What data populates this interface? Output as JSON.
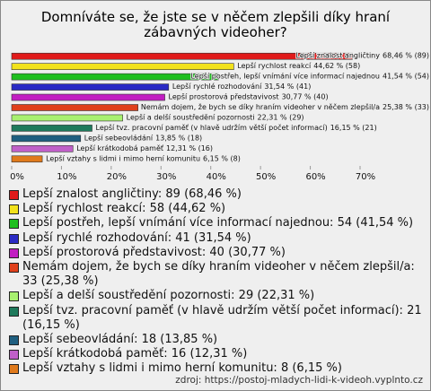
{
  "chart_data": {
    "type": "bar",
    "orientation": "horizontal",
    "title": "Domníváte se, že jste se v něčem zlepšili díky hraní zábavných videoher?",
    "categories": [
      "Lepší znalost angličtiny",
      "Lepší rychlost reakcí",
      "Lepší postřeh, lepší vnímání více informací najednou",
      "Lepší rychlé rozhodování",
      "Lepší prostorová představivost",
      "Nemám dojem, že bych se díky hraním videoher v něčem zlepšil/a",
      "Lepší a delší soustředění pozornosti",
      "Lepší tvz. pracovní paměť (v hlavě udržím větší počet informací)",
      "Lepší sebeovládání",
      "Lepší krátkodobá paměť",
      "Lepší vztahy s lidmi i mimo herní komunitu"
    ],
    "values": [
      68.46,
      44.62,
      41.54,
      31.54,
      30.77,
      25.38,
      22.31,
      16.15,
      13.85,
      12.31,
      6.15
    ],
    "value_labels": [
      "68,46 % (89)",
      "44,62 % (58)",
      "41,54 % (54)",
      "31,54 % (41)",
      "30,77 % (40)",
      "25,38 % (33)",
      "22,31 % (29)",
      "16,15 % (21)",
      "13,85 % (18)",
      "12,31 % (16)",
      "6,15 % (8)"
    ],
    "colors": [
      "#e01a1a",
      "#f2e21c",
      "#1fbf1f",
      "#2a2ac4",
      "#c21ec2",
      "#e0401c",
      "#a8f070",
      "#1f7a5c",
      "#1f5f80",
      "#c060c8",
      "#e07a1c"
    ],
    "legend_labels": [
      "Lepší znalost angličtiny: 89 (68,46 %)",
      "Lepší rychlost reakcí: 58 (44,62 %)",
      "Lepší postřeh, lepší vnímání více informací najednou: 54 (41,54 %)",
      "Lepší rychlé rozhodování: 41 (31,54 %)",
      "Lepší prostorová představivost: 40 (30,77 %)",
      "Nemám dojem, že bych se díky hraním videoher v něčem zlepšil/a: 33 (25,38 %)",
      "Lepší a delší soustředění pozornosti: 29 (22,31 %)",
      "Lepší tvz. pracovní paměť (v hlavě udržím větší počet informací): 21 (16,15 %)",
      "Lepší sebeovládání: 18 (13,85 %)",
      "Lepší krátkodobá paměť: 16 (12,31 %)",
      "Lepší vztahy s lidmi i mimo herní komunitu: 8 (6,15 %)"
    ],
    "xlim": [
      0,
      70
    ],
    "xticks": [
      {
        "value": 0,
        "label": "0%"
      },
      {
        "value": 10,
        "label": "10%"
      },
      {
        "value": 20,
        "label": "20%"
      },
      {
        "value": 30,
        "label": "30%"
      },
      {
        "value": 40,
        "label": "40%"
      },
      {
        "value": 50,
        "label": "50%"
      },
      {
        "value": 60,
        "label": "60%"
      },
      {
        "value": 70,
        "label": "70%"
      }
    ],
    "source": "zdroj: https://postoj-mladych-lidi-k-videoh.vyplnto.cz"
  }
}
